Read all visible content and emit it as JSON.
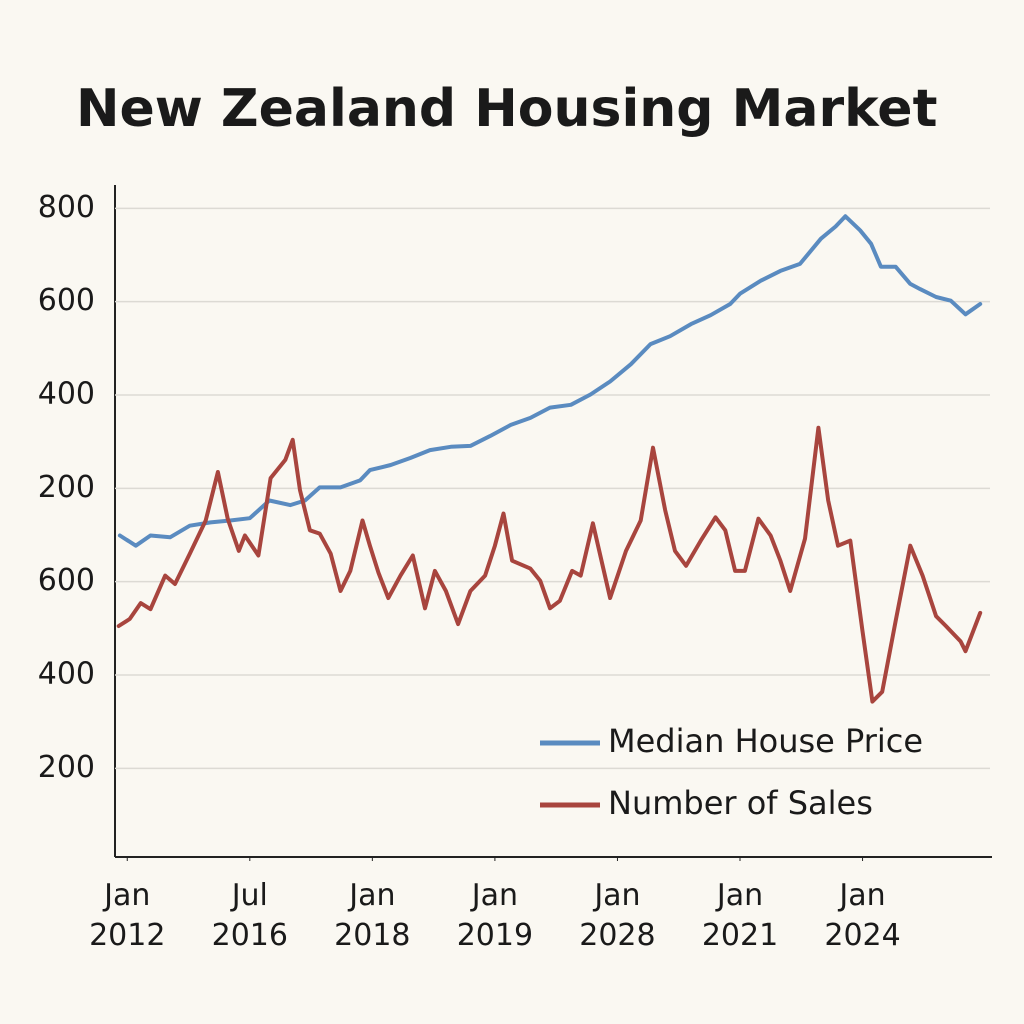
{
  "chart_data": {
    "type": "line",
    "title": "New Zealand Housing Market",
    "xlim": [
      -0.1,
      7.04
    ],
    "xticks": [
      {
        "value": 0,
        "label": "Jan 2012"
      },
      {
        "value": 1,
        "label": "Jul 2016"
      },
      {
        "value": 2,
        "label": "Jan 2018"
      },
      {
        "value": 3,
        "label": "Jan 2019"
      },
      {
        "value": 4,
        "label": "Jan 2028"
      },
      {
        "value": 5,
        "label": "Jan 2021"
      },
      {
        "value": 6,
        "label": "Jan 2024"
      }
    ],
    "ylim": [
      -590,
      850
    ],
    "yticks": [
      800,
      600,
      400,
      200,
      {
        "value": 0,
        "label": "600"
      },
      {
        "value": -200,
        "label": "400"
      },
      {
        "value": -400,
        "label": "200"
      }
    ],
    "grid": true,
    "legend": "lower right",
    "series": [
      {
        "name": "Median House Price",
        "color": "#5a8bc0",
        "x": [
          -0.06,
          0.07,
          0.19,
          0.35,
          0.51,
          0.68,
          0.84,
          1.0,
          1.16,
          1.33,
          1.45,
          1.57,
          1.74,
          1.9,
          1.98,
          2.15,
          2.31,
          2.47,
          2.64,
          2.8,
          2.96,
          3.13,
          3.29,
          3.45,
          3.62,
          3.78,
          3.94,
          4.11,
          4.27,
          4.43,
          4.6,
          4.76,
          4.92,
          5.0,
          5.17,
          5.33,
          5.49,
          5.66,
          5.78,
          5.86,
          5.98,
          6.07,
          6.15,
          6.27,
          6.39,
          6.47,
          6.6,
          6.72,
          6.84,
          6.96
        ],
        "values": [
          99,
          77,
          99,
          95,
          120,
          127,
          131,
          136,
          174,
          164,
          174,
          202,
          202,
          217,
          239,
          250,
          265,
          282,
          289,
          291,
          312,
          336,
          351,
          373,
          379,
          401,
          429,
          466,
          509,
          526,
          552,
          571,
          595,
          617,
          645,
          666,
          681,
          735,
          761,
          783,
          753,
          724,
          675,
          675,
          638,
          627,
          610,
          602,
          573,
          595
        ]
      },
      {
        "name": "Number of Sales",
        "color": "#a8453e",
        "x": [
          -0.07,
          0.02,
          0.11,
          0.19,
          0.31,
          0.39,
          0.51,
          0.64,
          0.74,
          0.82,
          0.91,
          0.96,
          1.07,
          1.17,
          1.29,
          1.35,
          1.41,
          1.49,
          1.57,
          1.66,
          1.74,
          1.82,
          1.92,
          1.98,
          2.05,
          2.13,
          2.23,
          2.33,
          2.43,
          2.51,
          2.6,
          2.7,
          2.8,
          2.92,
          3.0,
          3.07,
          3.14,
          3.29,
          3.37,
          3.45,
          3.53,
          3.63,
          3.7,
          3.8,
          3.94,
          4.07,
          4.19,
          4.29,
          4.39,
          4.47,
          4.56,
          4.68,
          4.8,
          4.88,
          4.96,
          5.04,
          5.15,
          5.25,
          5.33,
          5.41,
          5.53,
          5.64,
          5.72,
          5.8,
          5.9,
          6.0,
          6.08,
          6.16,
          6.27,
          6.39,
          6.49,
          6.6,
          6.68,
          6.8,
          6.84,
          6.96
        ],
        "values": [
          -95,
          -80,
          -46,
          -59,
          13,
          -5,
          60,
          131,
          235,
          135,
          66,
          99,
          56,
          222,
          261,
          304,
          196,
          110,
          103,
          60,
          -20,
          23,
          131,
          77,
          19,
          -35,
          13,
          56,
          -57,
          23,
          -20,
          -91,
          -20,
          13,
          77,
          146,
          45,
          28,
          2,
          -57,
          -41,
          23,
          13,
          125,
          -35,
          66,
          131,
          287,
          153,
          66,
          34,
          88,
          138,
          110,
          23,
          23,
          135,
          99,
          45,
          -20,
          92,
          330,
          174,
          77,
          88,
          -106,
          -257,
          -236,
          -85,
          77,
          13,
          -74,
          -95,
          -128,
          -149,
          -67
        ]
      }
    ]
  }
}
